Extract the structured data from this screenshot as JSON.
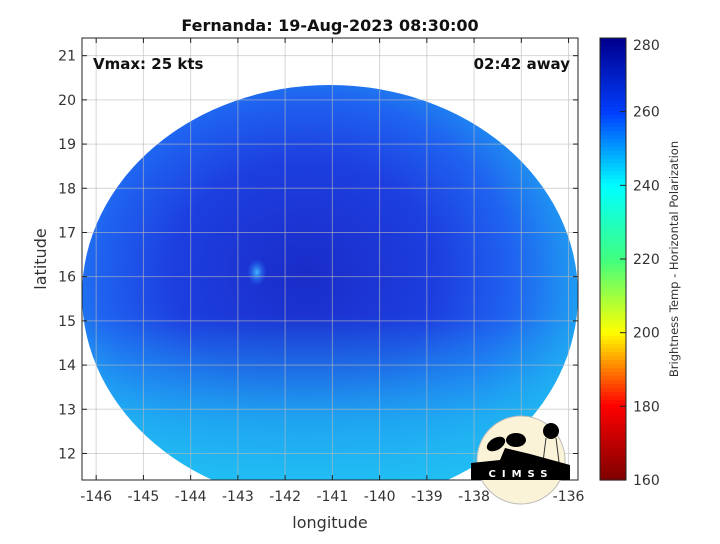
{
  "chart_data": {
    "type": "heatmap",
    "title": "Fernanda: 19-Aug-2023 08:30:00",
    "xlabel": "longitude",
    "ylabel": "latitude",
    "xlim": [
      -146.3,
      -135.8
    ],
    "ylim": [
      11.4,
      21.4
    ],
    "xticks": [
      -146,
      -145,
      -144,
      -143,
      -142,
      -141,
      -140,
      -139,
      -138,
      -137,
      -136
    ],
    "yticks": [
      12,
      13,
      14,
      15,
      16,
      17,
      18,
      19,
      20,
      21
    ],
    "grid": true,
    "annotations": {
      "vmax": "Vmax: 25 kts",
      "away": "02:42 away"
    },
    "eye_center": {
      "lon": -142.6,
      "lat": 16.1
    },
    "colorbar": {
      "label": "Brightness Temp - Horizontal Polarization",
      "range": [
        160,
        280
      ],
      "ticks": [
        160,
        180,
        200,
        220,
        240,
        260,
        280
      ],
      "colormap": "jet",
      "colors": [
        "#800000",
        "#ff0000",
        "#ffff00",
        "#40ff80",
        "#00ffff",
        "#0040ff",
        "#000090"
      ]
    },
    "field_colors": {
      "core": "#1a2fd0",
      "mid": "#1f5cf0",
      "outer": "#1fb4f2"
    }
  },
  "logo": {
    "text": "CIMSS"
  }
}
